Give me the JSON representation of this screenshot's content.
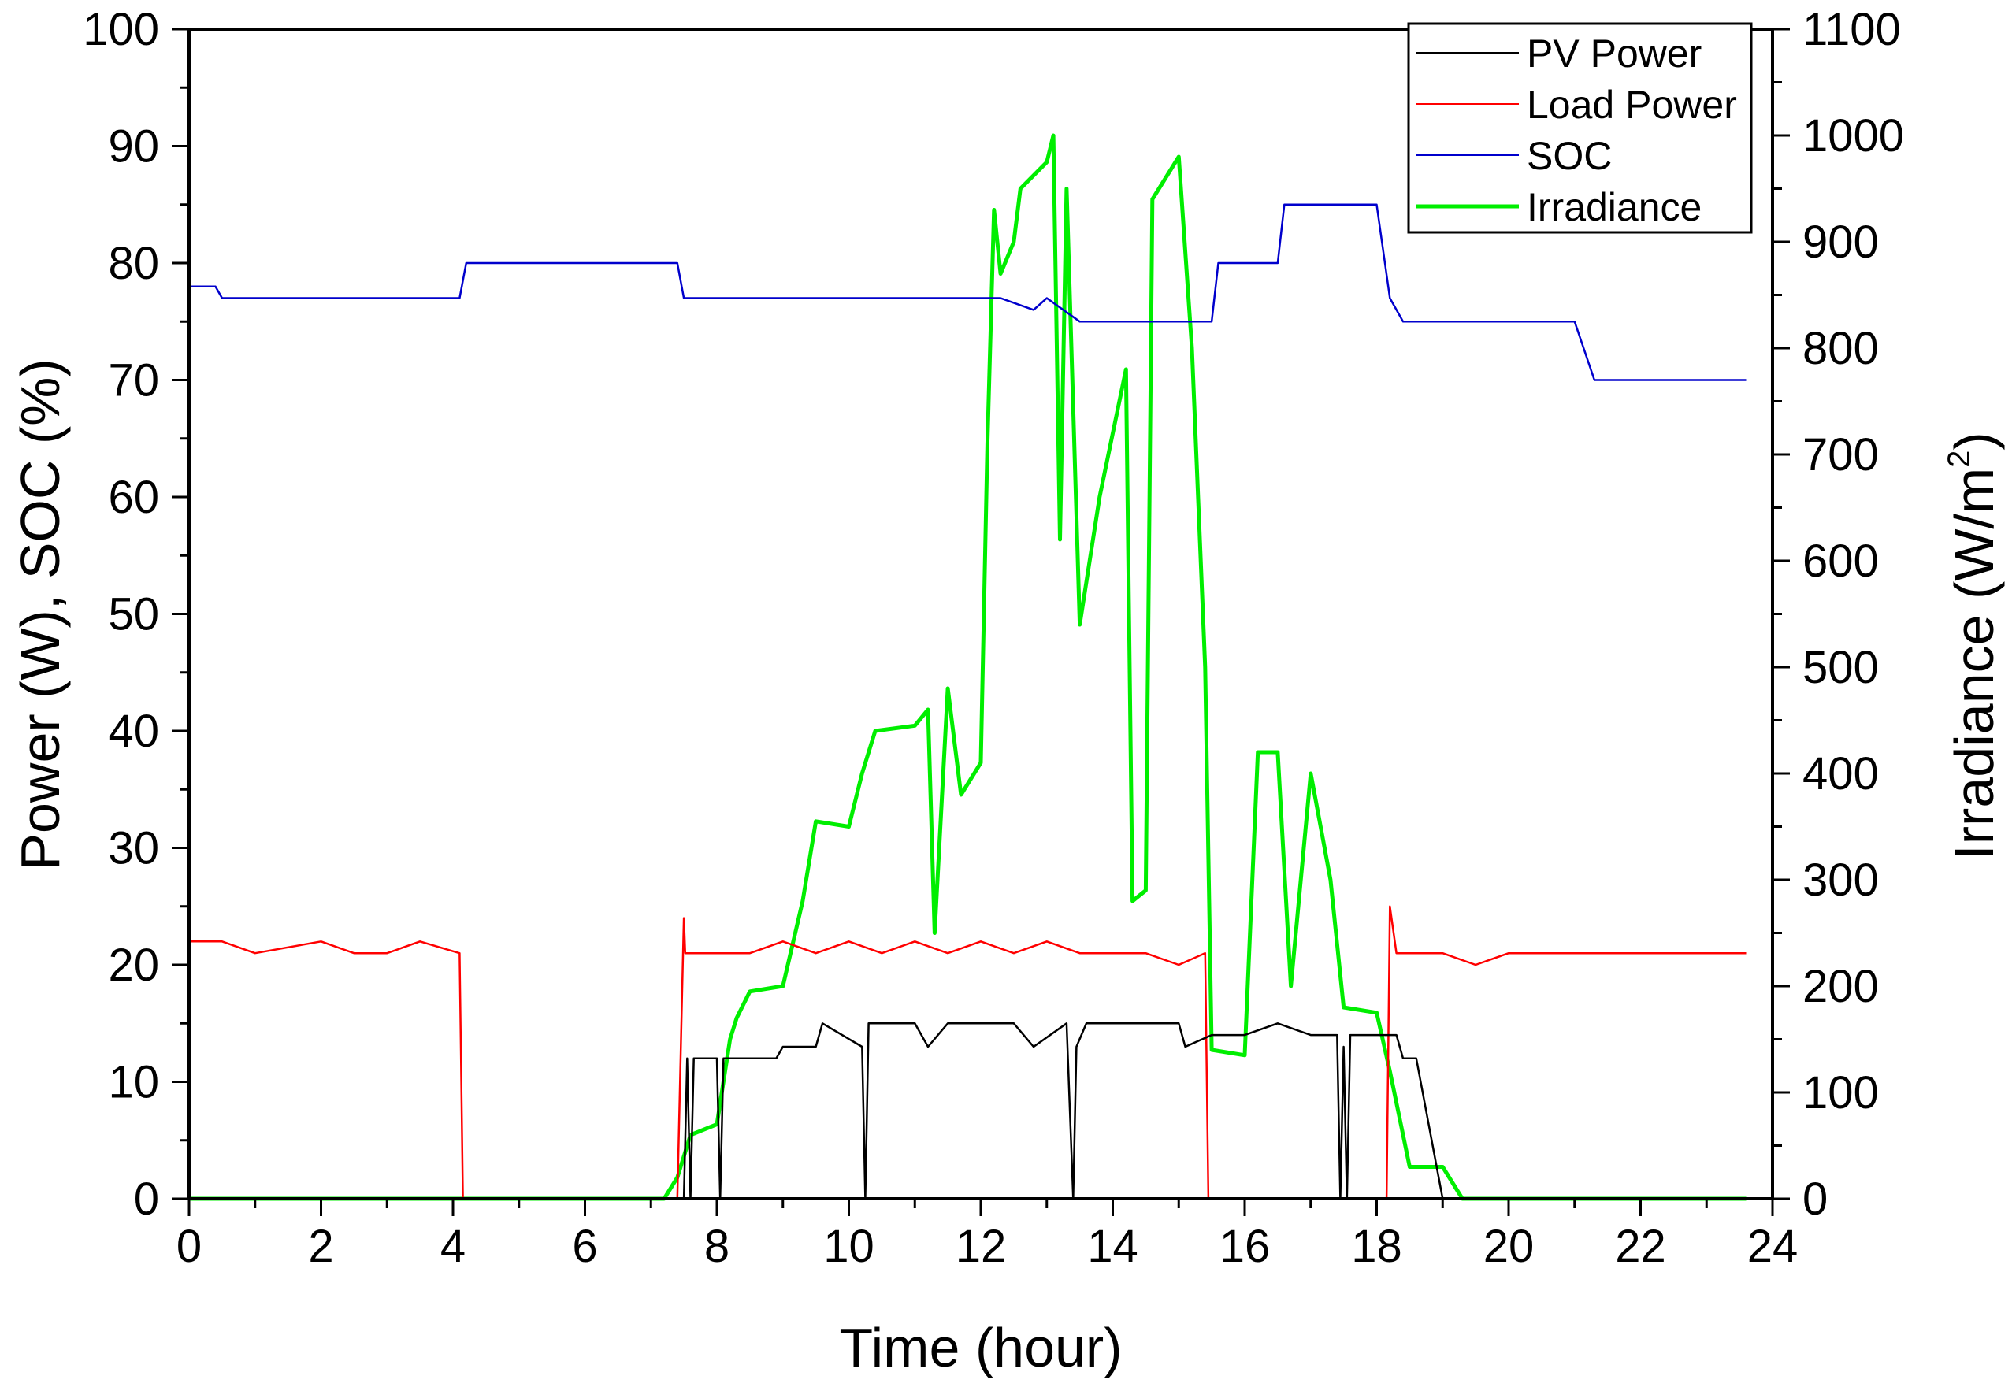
{
  "chart_data": {
    "type": "line",
    "title": "",
    "xlabel": "Time (hour)",
    "ylabel_left": "Power (W), SOC (%)",
    "ylabel_right_prefix": "Irradiance (W/m",
    "ylabel_right_sup": "2",
    "ylabel_right_suffix": ")",
    "xlim": [
      0,
      24
    ],
    "ylim_left": [
      0,
      100
    ],
    "ylim_right": [
      0,
      1100
    ],
    "x_ticks": [
      "0",
      "2",
      "4",
      "6",
      "8",
      "10",
      "12",
      "14",
      "16",
      "18",
      "20",
      "22",
      "24"
    ],
    "y_left_ticks": [
      "0",
      "10",
      "20",
      "30",
      "40",
      "50",
      "60",
      "70",
      "80",
      "90",
      "100"
    ],
    "y_right_ticks": [
      "0",
      "100",
      "200",
      "300",
      "400",
      "500",
      "600",
      "700",
      "800",
      "900",
      "1000",
      "1100"
    ],
    "legend_position": "top-right",
    "series": [
      {
        "name": "PV Power",
        "axis": "left",
        "color": "#000000",
        "points": [
          [
            0,
            0
          ],
          [
            7.5,
            0
          ],
          [
            7.55,
            12
          ],
          [
            7.6,
            0
          ],
          [
            7.65,
            12
          ],
          [
            8.0,
            12
          ],
          [
            8.05,
            0
          ],
          [
            8.1,
            12
          ],
          [
            8.9,
            12
          ],
          [
            9.0,
            13
          ],
          [
            9.5,
            13
          ],
          [
            9.6,
            15
          ],
          [
            10.2,
            13
          ],
          [
            10.25,
            0
          ],
          [
            10.3,
            15
          ],
          [
            11.0,
            15
          ],
          [
            11.2,
            13
          ],
          [
            11.5,
            15
          ],
          [
            12.5,
            15
          ],
          [
            12.8,
            13
          ],
          [
            13.3,
            15
          ],
          [
            13.4,
            0
          ],
          [
            13.45,
            13
          ],
          [
            13.6,
            15
          ],
          [
            15.0,
            15
          ],
          [
            15.1,
            13
          ],
          [
            15.5,
            14
          ],
          [
            16.0,
            14
          ],
          [
            16.5,
            15
          ],
          [
            17.0,
            14
          ],
          [
            17.4,
            14
          ],
          [
            17.45,
            0
          ],
          [
            17.5,
            13
          ],
          [
            17.55,
            0
          ],
          [
            17.6,
            14
          ],
          [
            18.3,
            14
          ],
          [
            18.4,
            12
          ],
          [
            18.6,
            12
          ],
          [
            19.0,
            0
          ],
          [
            23.6,
            0
          ]
        ]
      },
      {
        "name": "Load Power",
        "axis": "left",
        "color": "#ff0000",
        "points": [
          [
            0,
            22
          ],
          [
            0.5,
            22
          ],
          [
            1.0,
            21
          ],
          [
            2.0,
            22
          ],
          [
            2.5,
            21
          ],
          [
            3.0,
            21
          ],
          [
            3.5,
            22
          ],
          [
            4.1,
            21
          ],
          [
            4.15,
            0
          ],
          [
            7.4,
            0
          ],
          [
            7.5,
            24
          ],
          [
            7.52,
            21
          ],
          [
            8.5,
            21
          ],
          [
            9.0,
            22
          ],
          [
            9.5,
            21
          ],
          [
            10.0,
            22
          ],
          [
            10.5,
            21
          ],
          [
            11.0,
            22
          ],
          [
            11.5,
            21
          ],
          [
            12.0,
            22
          ],
          [
            12.5,
            21
          ],
          [
            13.0,
            22
          ],
          [
            13.5,
            21
          ],
          [
            14.0,
            21
          ],
          [
            14.5,
            21
          ],
          [
            15.0,
            20
          ],
          [
            15.4,
            21
          ],
          [
            15.45,
            0
          ],
          [
            18.15,
            0
          ],
          [
            18.2,
            25
          ],
          [
            18.3,
            21
          ],
          [
            19.0,
            21
          ],
          [
            19.5,
            20
          ],
          [
            20.0,
            21
          ],
          [
            21.0,
            21
          ],
          [
            22.0,
            21
          ],
          [
            23.0,
            21
          ],
          [
            23.6,
            21
          ]
        ]
      },
      {
        "name": "SOC",
        "axis": "left",
        "color": "#0000cc",
        "points": [
          [
            0,
            78
          ],
          [
            0.4,
            78
          ],
          [
            0.5,
            77
          ],
          [
            1.3,
            77
          ],
          [
            2.0,
            77
          ],
          [
            3.0,
            77
          ],
          [
            4.1,
            77
          ],
          [
            4.2,
            80
          ],
          [
            5.0,
            80
          ],
          [
            6.0,
            80
          ],
          [
            7.4,
            80
          ],
          [
            7.5,
            77
          ],
          [
            8.5,
            77
          ],
          [
            9.5,
            77
          ],
          [
            10.5,
            77
          ],
          [
            11.5,
            77
          ],
          [
            12.3,
            77
          ],
          [
            12.8,
            76
          ],
          [
            13.0,
            77
          ],
          [
            13.5,
            75
          ],
          [
            14.0,
            75
          ],
          [
            15.0,
            75
          ],
          [
            15.5,
            75
          ],
          [
            15.6,
            80
          ],
          [
            16.5,
            80
          ],
          [
            16.6,
            85
          ],
          [
            17.5,
            85
          ],
          [
            18.0,
            85
          ],
          [
            18.2,
            77
          ],
          [
            18.4,
            75
          ],
          [
            19.5,
            75
          ],
          [
            21.0,
            75
          ],
          [
            21.3,
            70
          ],
          [
            22.0,
            70
          ],
          [
            23.0,
            70
          ],
          [
            23.6,
            70
          ]
        ]
      },
      {
        "name": "Irradiance",
        "axis": "right",
        "color": "#00ee00",
        "points": [
          [
            0,
            0
          ],
          [
            7.2,
            0
          ],
          [
            7.4,
            20
          ],
          [
            7.6,
            60
          ],
          [
            8.0,
            70
          ],
          [
            8.2,
            150
          ],
          [
            8.3,
            170
          ],
          [
            8.5,
            195
          ],
          [
            9.0,
            200
          ],
          [
            9.3,
            280
          ],
          [
            9.5,
            355
          ],
          [
            10.0,
            350
          ],
          [
            10.2,
            400
          ],
          [
            10.4,
            440
          ],
          [
            11.0,
            445
          ],
          [
            11.2,
            460
          ],
          [
            11.3,
            250
          ],
          [
            11.5,
            480
          ],
          [
            11.7,
            380
          ],
          [
            12.0,
            410
          ],
          [
            12.1,
            710
          ],
          [
            12.2,
            930
          ],
          [
            12.3,
            870
          ],
          [
            12.5,
            900
          ],
          [
            12.6,
            950
          ],
          [
            13.0,
            975
          ],
          [
            13.1,
            1000
          ],
          [
            13.2,
            620
          ],
          [
            13.3,
            950
          ],
          [
            13.5,
            540
          ],
          [
            13.8,
            660
          ],
          [
            14.2,
            780
          ],
          [
            14.3,
            280
          ],
          [
            14.5,
            290
          ],
          [
            14.6,
            940
          ],
          [
            15.0,
            980
          ],
          [
            15.2,
            800
          ],
          [
            15.4,
            500
          ],
          [
            15.5,
            140
          ],
          [
            16.0,
            135
          ],
          [
            16.2,
            420
          ],
          [
            16.5,
            420
          ],
          [
            16.7,
            200
          ],
          [
            17.0,
            400
          ],
          [
            17.3,
            300
          ],
          [
            17.5,
            180
          ],
          [
            18.0,
            175
          ],
          [
            18.2,
            120
          ],
          [
            18.5,
            30
          ],
          [
            19.0,
            30
          ],
          [
            19.3,
            0
          ],
          [
            23.6,
            0
          ]
        ]
      }
    ]
  }
}
